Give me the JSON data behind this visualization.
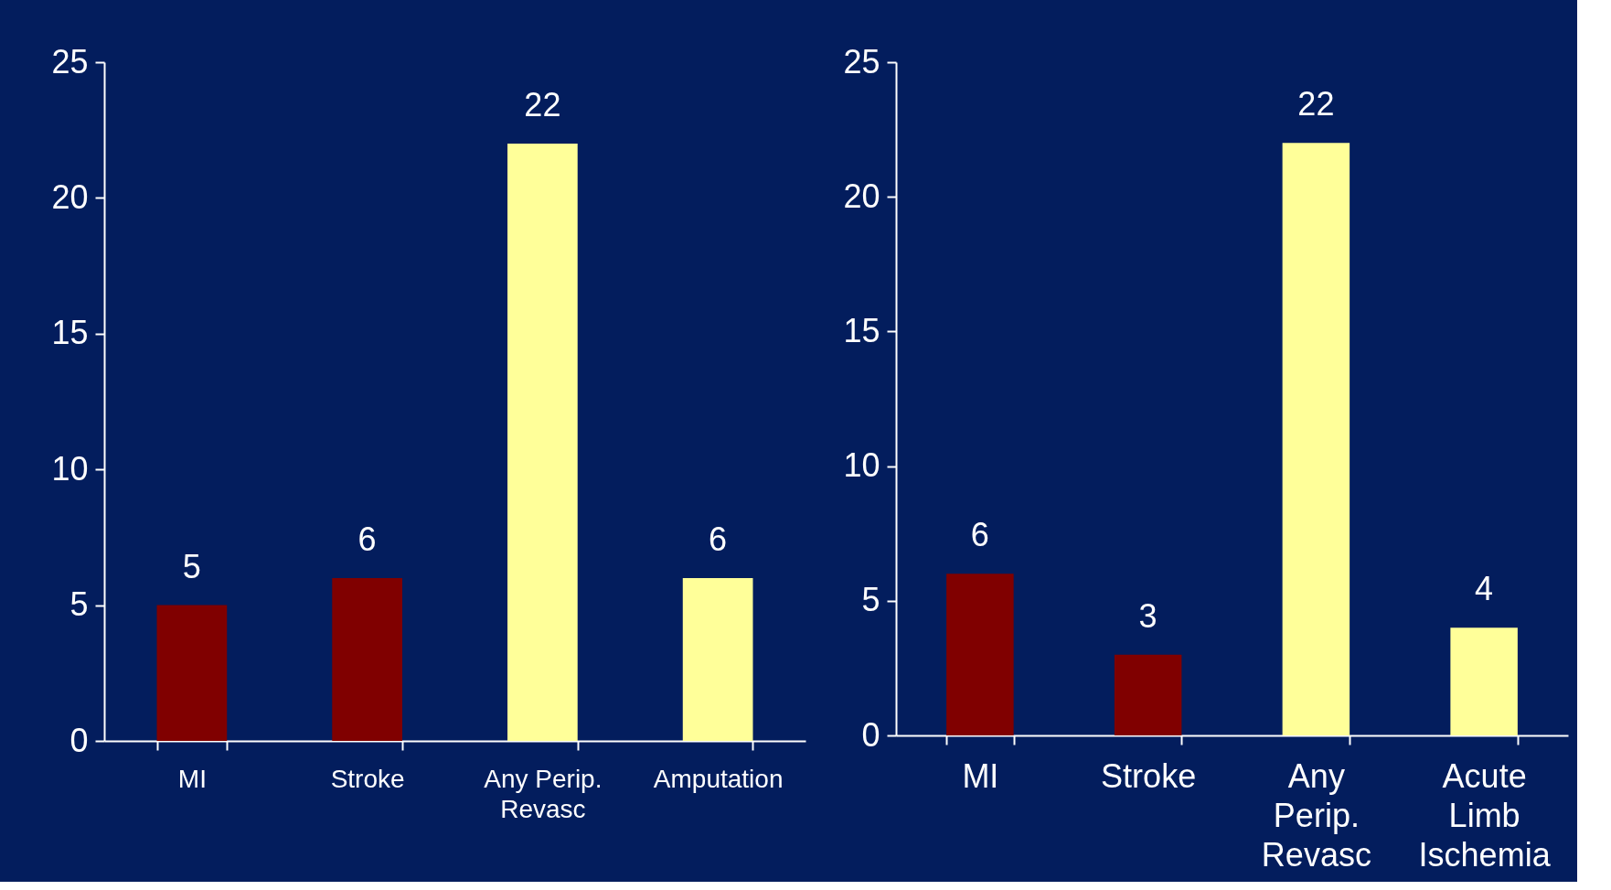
{
  "chart_data": [
    {
      "type": "bar",
      "categories": [
        "MI",
        "Stroke",
        "Any Perip.\nRevasc",
        "Amputation"
      ],
      "values": [
        5,
        6,
        22,
        6
      ],
      "colors": [
        "#800000",
        "#800000",
        "#ffff99",
        "#ffff99"
      ],
      "ylim": [
        0,
        25
      ],
      "yticks": [
        0,
        5,
        10,
        15,
        20,
        25
      ],
      "data_labels": true,
      "grid": false,
      "legend": false
    },
    {
      "type": "bar",
      "categories": [
        "MI",
        "Stroke",
        "Any\nPerip.\nRevasc",
        "Acute\nLimb\nIschemia"
      ],
      "values": [
        6,
        3,
        22,
        4
      ],
      "colors": [
        "#800000",
        "#800000",
        "#ffff99",
        "#ffff99"
      ],
      "ylim": [
        0,
        25
      ],
      "yticks": [
        0,
        5,
        10,
        15,
        20,
        25
      ],
      "data_labels": true,
      "grid": false,
      "legend": false
    }
  ]
}
